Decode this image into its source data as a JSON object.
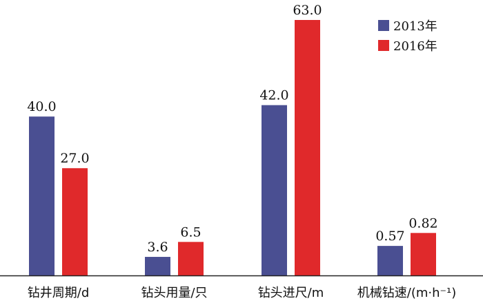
{
  "chart_data": {
    "type": "bar",
    "categories": [
      "钻井周期/d",
      "钻头用量/只",
      "钻头进尺/m",
      "机械钻速/(m·h⁻¹)"
    ],
    "series": [
      {
        "name": "2013年",
        "color": "#4a4f92",
        "values": [
          40.0,
          3.6,
          42.0,
          0.57
        ],
        "labels": [
          "40.0",
          "3.6",
          "42.0",
          "0.57"
        ]
      },
      {
        "name": "2016年",
        "color": "#e0292b",
        "values": [
          27.0,
          6.5,
          63.0,
          0.82
        ],
        "labels": [
          "27.0",
          "6.5",
          "63.0",
          "0.82"
        ]
      }
    ],
    "legend": "top-right",
    "grid": false,
    "y_axis_visible": false
  }
}
